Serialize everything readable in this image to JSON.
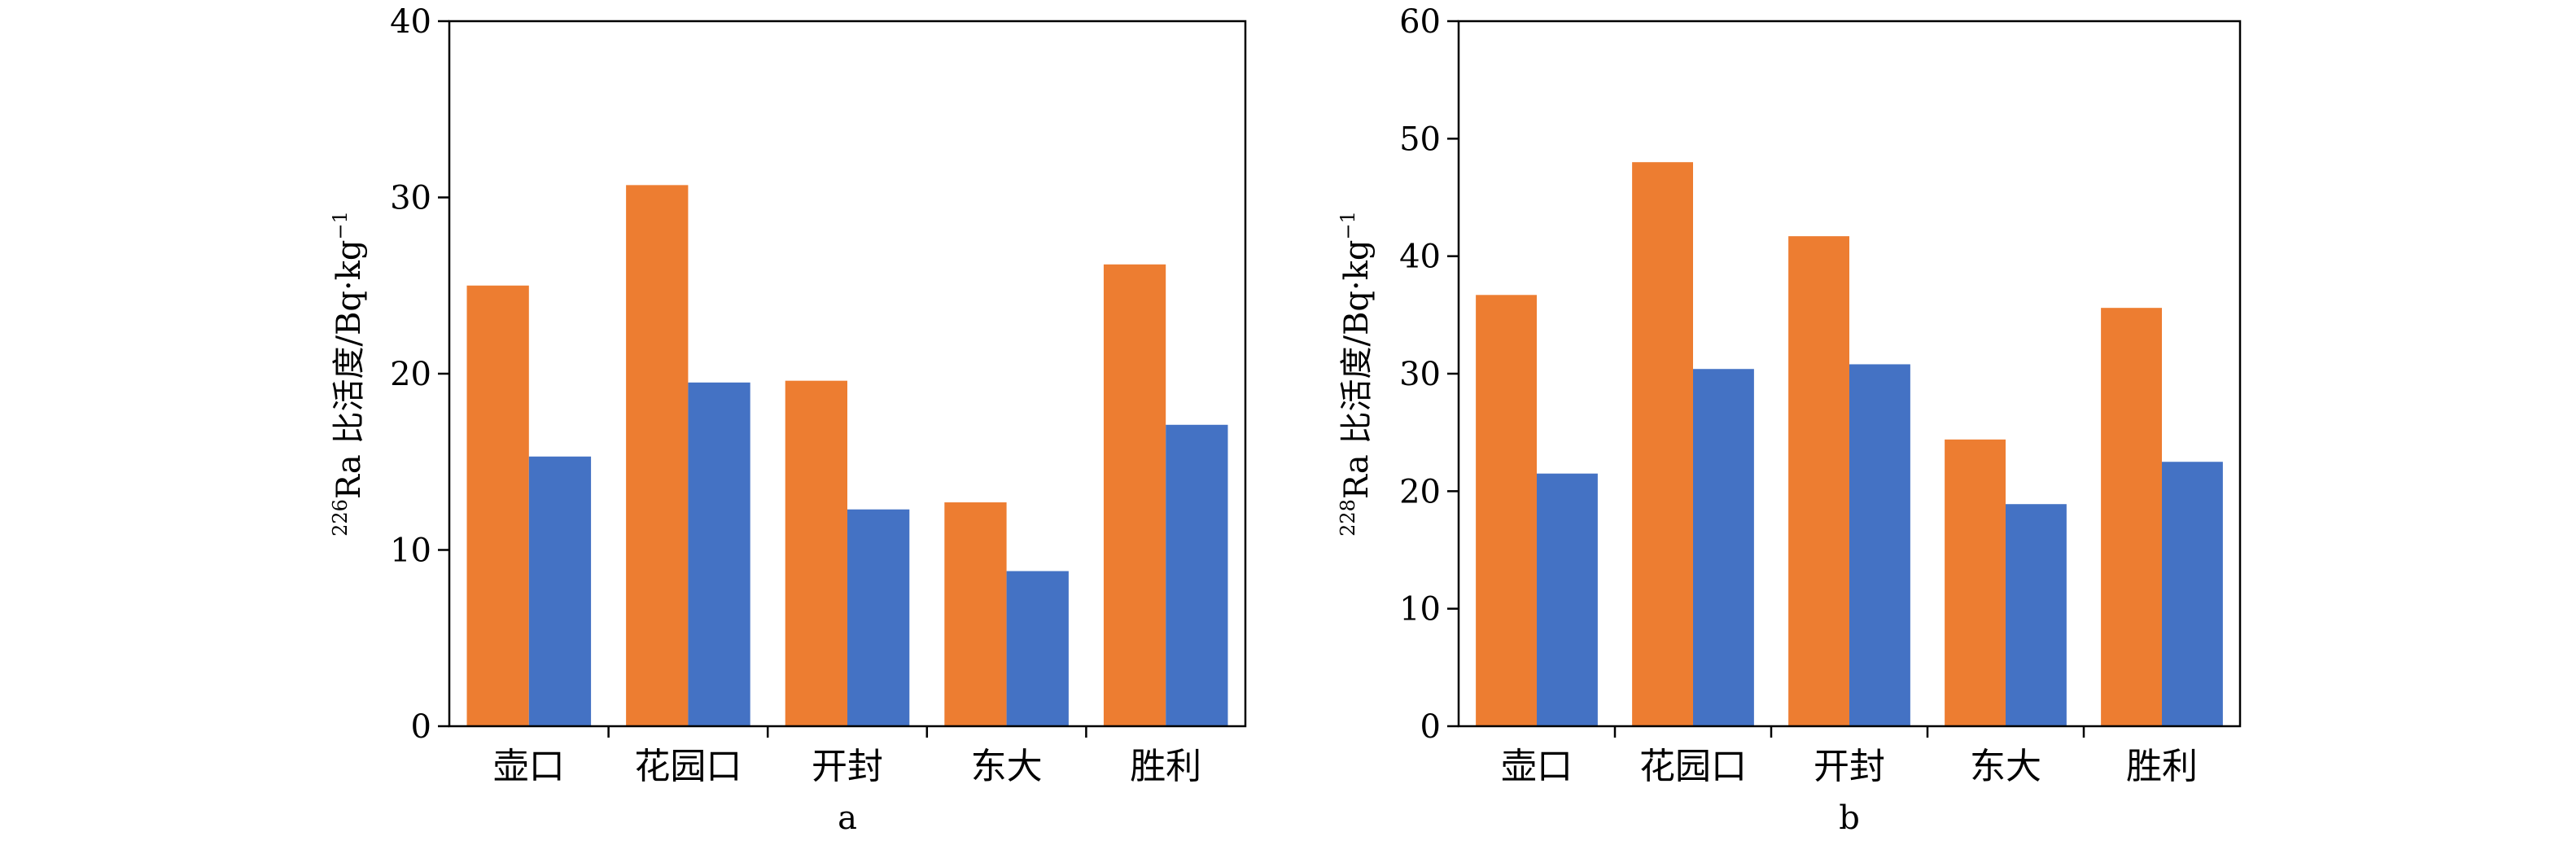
{
  "colors": {
    "series_1": "#ED7D31",
    "series_2": "#4472C4",
    "axis": "#000000"
  },
  "chart_data": [
    {
      "type": "bar",
      "panel_label": "a",
      "ylabel": {
        "sup": "226",
        "text": "Ra 比活度/Bq·kg",
        "exp": "−1"
      },
      "ylim": [
        0,
        40
      ],
      "yticks": [
        0,
        10,
        20,
        30,
        40
      ],
      "grid": false,
      "categories": [
        "壶口",
        "花园口",
        "开封",
        "东大",
        "胜利"
      ],
      "series": [
        {
          "values": [
            25.0,
            30.7,
            19.6,
            12.7,
            26.2
          ]
        },
        {
          "values": [
            15.3,
            19.5,
            12.3,
            8.8,
            17.1
          ]
        }
      ]
    },
    {
      "type": "bar",
      "panel_label": "b",
      "ylabel": {
        "sup": "228",
        "text": "Ra 比活度/Bq·kg",
        "exp": "−1"
      },
      "ylim": [
        0,
        60
      ],
      "yticks": [
        0,
        10,
        20,
        30,
        40,
        50,
        60
      ],
      "grid": false,
      "categories": [
        "壶口",
        "花园口",
        "开封",
        "东大",
        "胜利"
      ],
      "series": [
        {
          "values": [
            36.7,
            48.0,
            41.7,
            24.4,
            35.6
          ]
        },
        {
          "values": [
            21.5,
            30.4,
            30.8,
            18.9,
            22.5
          ]
        }
      ]
    }
  ]
}
